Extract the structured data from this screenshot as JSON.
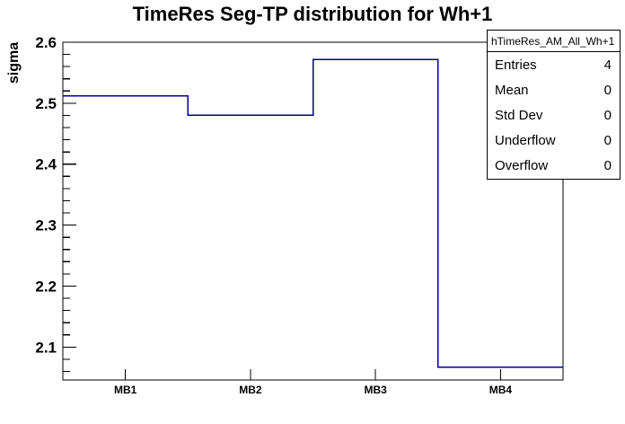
{
  "title": "TimeRes Seg-TP distribution for Wh+1",
  "stats_box": {
    "header": "hTimeRes_AM_All_Wh+1",
    "rows": [
      {
        "label": "Entries",
        "value": "4"
      },
      {
        "label": "Mean",
        "value": "0"
      },
      {
        "label": "Std Dev",
        "value": "0"
      },
      {
        "label": "Underflow",
        "value": "0"
      },
      {
        "label": "Overflow",
        "value": "0"
      }
    ]
  },
  "chart_data": {
    "type": "line",
    "style": "step-histogram",
    "categories": [
      "MB1",
      "MB2",
      "MB3",
      "MB4"
    ],
    "values": [
      2.512,
      2.48,
      2.572,
      2.067
    ],
    "title": "TimeRes Seg-TP distribution for Wh+1",
    "xlabel": "",
    "ylabel": "sigma",
    "ylim": [
      2.046,
      2.6
    ],
    "y_major_step": 0.1,
    "y_minor_step": 0.02,
    "y_major_ticks": [
      2.1,
      2.2,
      2.3,
      2.4,
      2.5,
      2.6
    ],
    "grid": false,
    "legend": false,
    "line_color": "#000099",
    "frame_color": "#000000",
    "background_color": "#ffffff"
  }
}
